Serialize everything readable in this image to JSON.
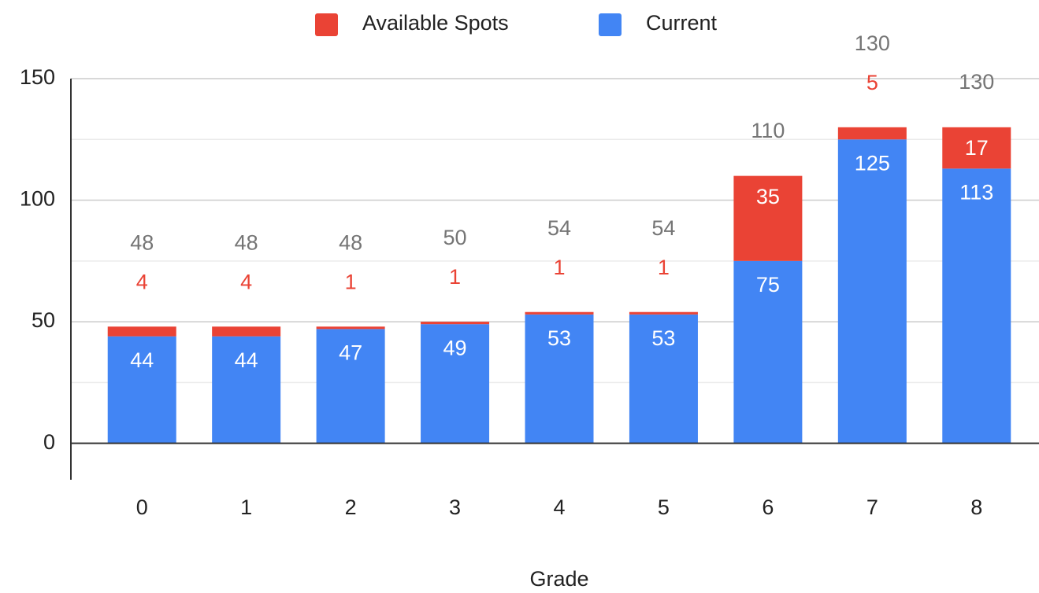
{
  "chart_data": {
    "type": "stacked_bar",
    "x_label": "Grade",
    "categories": [
      "0",
      "1",
      "2",
      "3",
      "4",
      "5",
      "6",
      "7",
      "8"
    ],
    "series": [
      {
        "name": "Available Spots",
        "color": "#ea4335",
        "values": [
          4,
          4,
          1,
          1,
          1,
          1,
          35,
          5,
          17
        ]
      },
      {
        "name": "Current",
        "color": "#4285f4",
        "values": [
          44,
          44,
          47,
          49,
          53,
          53,
          75,
          125,
          113
        ]
      }
    ],
    "totals": [
      48,
      48,
      48,
      50,
      54,
      54,
      110,
      130,
      130
    ],
    "ylim": [
      -15,
      150
    ],
    "yticks": [
      0,
      50,
      100,
      150
    ],
    "minor_gridlines": [
      25,
      75,
      125
    ],
    "grid": true,
    "legend": "top"
  }
}
